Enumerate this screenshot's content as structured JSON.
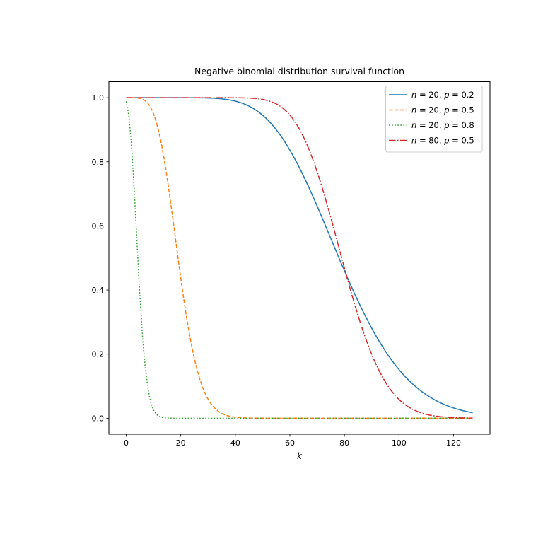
{
  "chart_data": {
    "type": "line",
    "title": "Negative binomial distribution survival function",
    "xlabel": "k",
    "ylabel": "",
    "x_ticks": [
      0,
      20,
      40,
      60,
      80,
      100,
      120
    ],
    "y_ticks": [
      0.0,
      0.2,
      0.4,
      0.6,
      0.8,
      1.0
    ],
    "xlim": [
      -6.35,
      133.35
    ],
    "ylim": [
      -0.05,
      1.05
    ],
    "k_min": 0,
    "k_max": 127,
    "grid": false,
    "legend_position": "upper right",
    "y_definition": "Survival function P(X > k) for X ~ NegativeBinomial(n, p), evaluated at integer k; pmf(k) = C(k+n-1, k) * p^n * (1-p)^k",
    "series": [
      {
        "label": "n = 20, p = 0.2",
        "n": 20,
        "p": 0.2,
        "color": "#1f77b4",
        "linestyle": "solid",
        "linewidth": 1.5
      },
      {
        "label": "n = 20, p = 0.5",
        "n": 20,
        "p": 0.5,
        "color": "#ff7f0e",
        "linestyle": "dashed",
        "linewidth": 1.5
      },
      {
        "label": "n = 20, p = 0.8",
        "n": 20,
        "p": 0.8,
        "color": "#2ca02c",
        "linestyle": "dotted",
        "linewidth": 1.5
      },
      {
        "label": "n = 80, p = 0.5",
        "n": 80,
        "p": 0.5,
        "color": "#d62728",
        "linestyle": "dashdot",
        "linewidth": 1.5
      }
    ],
    "colors": {
      "axes_edge": "#000000",
      "legend_border": "#cccccc",
      "background": "#ffffff"
    }
  }
}
